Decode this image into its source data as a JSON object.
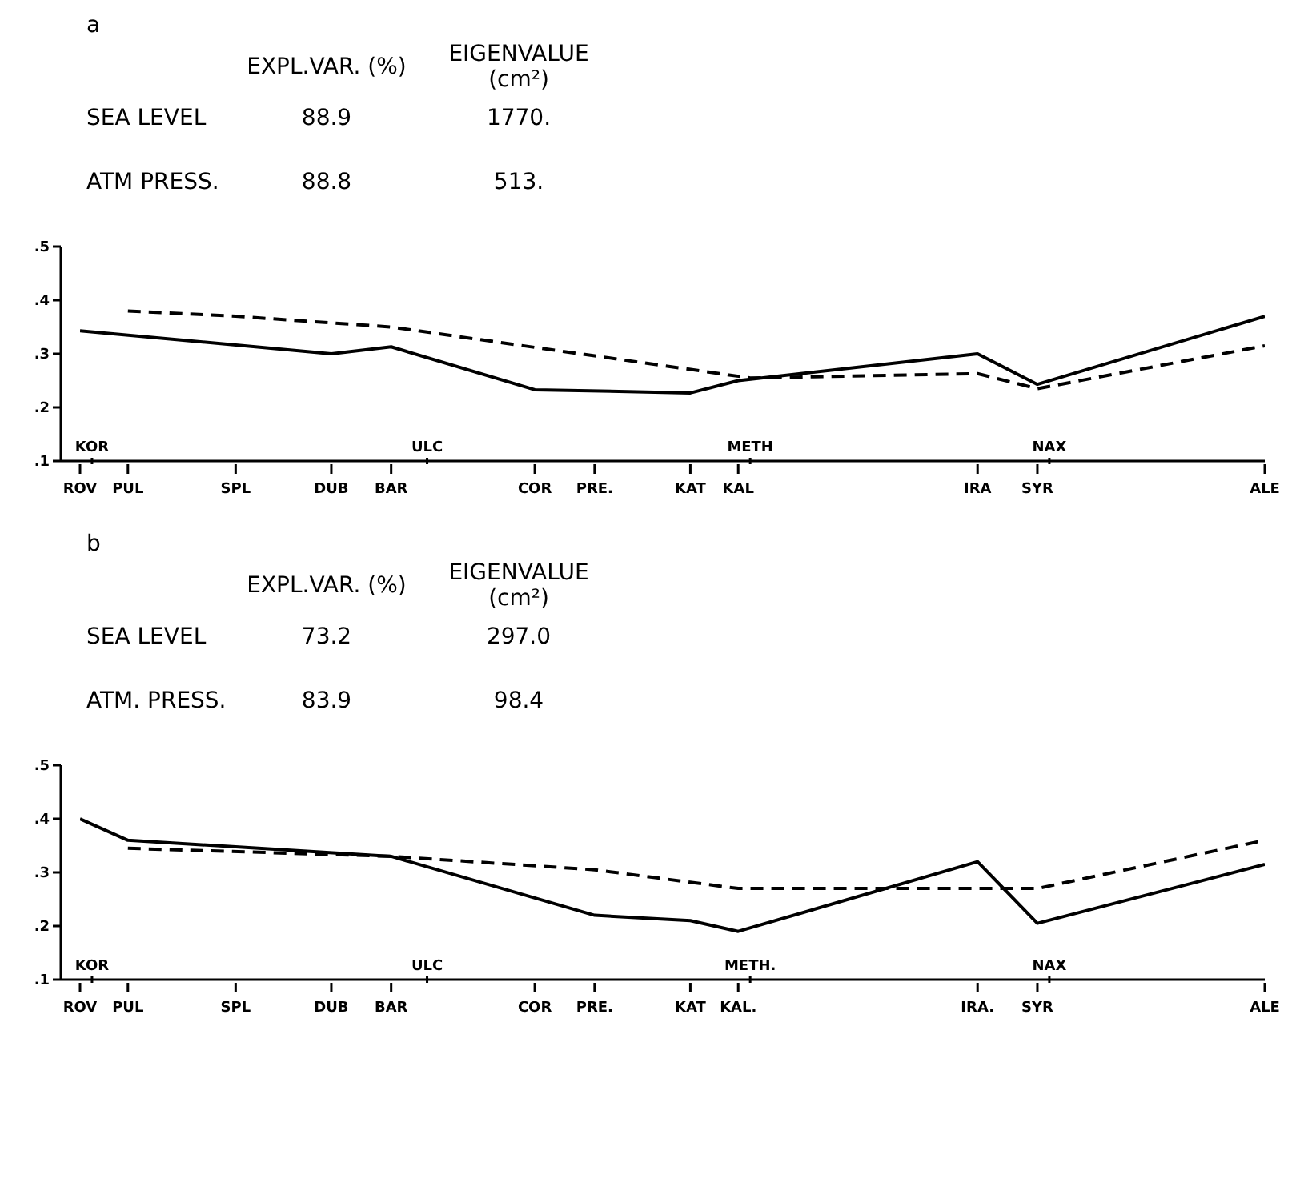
{
  "chart_data": [
    {
      "type": "line",
      "title": "a",
      "annotations": [
        "EXPL.VAR. (%)",
        "EIGENVALUE (cm²)",
        "SEA LEVEL",
        "88.9",
        "1770.",
        "ATM PRESS.",
        "88.8",
        "513."
      ],
      "categories": [
        "ROV",
        "KOR",
        null,
        null,
        "PUL",
        null,
        null,
        null,
        null,
        null,
        null,
        null,
        null,
        "SPL",
        null,
        null,
        null,
        null,
        null,
        null,
        null,
        "DUB",
        null,
        null,
        null,
        null,
        "BAR",
        null,
        null,
        "ULC",
        null,
        null,
        null,
        null,
        null,
        null,
        null,
        null,
        "COR",
        null,
        null,
        null,
        null,
        "PRE.",
        null,
        null,
        null,
        null,
        null,
        null,
        null,
        "KAT",
        null,
        null,
        null,
        "KAL",
        "METH",
        null,
        null,
        null,
        null,
        null,
        null,
        null,
        null,
        null,
        null,
        null,
        null,
        null,
        null,
        null,
        null,
        null,
        null,
        "IRA",
        null,
        null,
        null,
        null,
        "SYR",
        "NAX",
        null,
        null,
        null,
        null,
        null,
        null,
        null,
        null,
        null,
        null,
        null,
        null,
        null,
        null,
        null,
        null,
        null,
        "ALE"
      ],
      "ylim": [
        0.1,
        0.5
      ],
      "yticks": [
        {
          "value": 0.1,
          "label": ".1"
        },
        {
          "value": 0.2,
          "label": ".2"
        },
        {
          "value": 0.3,
          "label": ".3"
        },
        {
          "value": 0.4,
          "label": ".4"
        },
        {
          "value": 0.5,
          "label": ".5"
        }
      ],
      "grid": false,
      "legend": false,
      "marker": "none",
      "series": [
        {
          "color": "#000000",
          "line_style": "solid",
          "x": [
            "ROV",
            "DUB",
            "BAR",
            "COR",
            "KAT",
            "KAL",
            "IRA",
            "SYR",
            "ALE"
          ],
          "values": [
            0.343,
            0.3,
            0.313,
            0.233,
            0.227,
            0.25,
            0.3,
            0.243,
            0.37
          ]
        },
        {
          "color": "#000000",
          "line_style": "dashed",
          "x": [
            "PUL",
            "SPL",
            "BAR",
            "METH",
            "IRA",
            "SYR",
            "ALE"
          ],
          "values": [
            0.38,
            0.37,
            0.35,
            0.255,
            0.263,
            0.235,
            0.315
          ]
        }
      ]
    },
    {
      "type": "line",
      "title": "b",
      "annotations": [
        "EXPL.VAR. (%)",
        "EIGENVALUE (cm²)",
        "SEA LEVEL",
        "73.2",
        "297.0",
        "ATM. PRESS.",
        "83.9",
        "98.4"
      ],
      "categories": [
        "ROV",
        "KOR",
        null,
        null,
        "PUL",
        null,
        null,
        null,
        null,
        null,
        null,
        null,
        null,
        "SPL",
        null,
        null,
        null,
        null,
        null,
        null,
        null,
        "DUB",
        null,
        null,
        null,
        null,
        "BAR",
        null,
        null,
        "ULC",
        null,
        null,
        null,
        null,
        null,
        null,
        null,
        null,
        "COR",
        null,
        null,
        null,
        null,
        "PRE.",
        null,
        null,
        null,
        null,
        null,
        null,
        null,
        "KAT",
        null,
        null,
        null,
        "KAL.",
        "METH.",
        null,
        null,
        null,
        null,
        null,
        null,
        null,
        null,
        null,
        null,
        null,
        null,
        null,
        null,
        null,
        null,
        null,
        null,
        "IRA.",
        null,
        null,
        null,
        null,
        "SYR",
        "NAX",
        null,
        null,
        null,
        null,
        null,
        null,
        null,
        null,
        null,
        null,
        null,
        null,
        null,
        null,
        null,
        null,
        null,
        "ALE"
      ],
      "ylim": [
        0.1,
        0.5
      ],
      "yticks": [
        {
          "value": 0.1,
          "label": ".1"
        },
        {
          "value": 0.2,
          "label": ".2"
        },
        {
          "value": 0.3,
          "label": ".3"
        },
        {
          "value": 0.4,
          "label": ".4"
        },
        {
          "value": 0.5,
          "label": ".5"
        }
      ],
      "grid": false,
      "legend": false,
      "marker": "none",
      "series": [
        {
          "color": "#000000",
          "line_style": "solid",
          "x": [
            "ROV",
            "PUL",
            "BAR",
            "PRE.",
            "KAT",
            "KAL.",
            "IRA.",
            "SYR",
            "ALE"
          ],
          "values": [
            0.4,
            0.36,
            0.33,
            0.22,
            0.21,
            0.19,
            0.32,
            0.205,
            0.315
          ]
        },
        {
          "color": "#000000",
          "line_style": "dashed",
          "x": [
            "PUL",
            "BAR",
            "PRE.",
            "KAL.",
            "SYR",
            "ALE"
          ],
          "values": [
            0.345,
            0.33,
            0.305,
            0.27,
            0.27,
            0.36
          ]
        }
      ]
    }
  ]
}
